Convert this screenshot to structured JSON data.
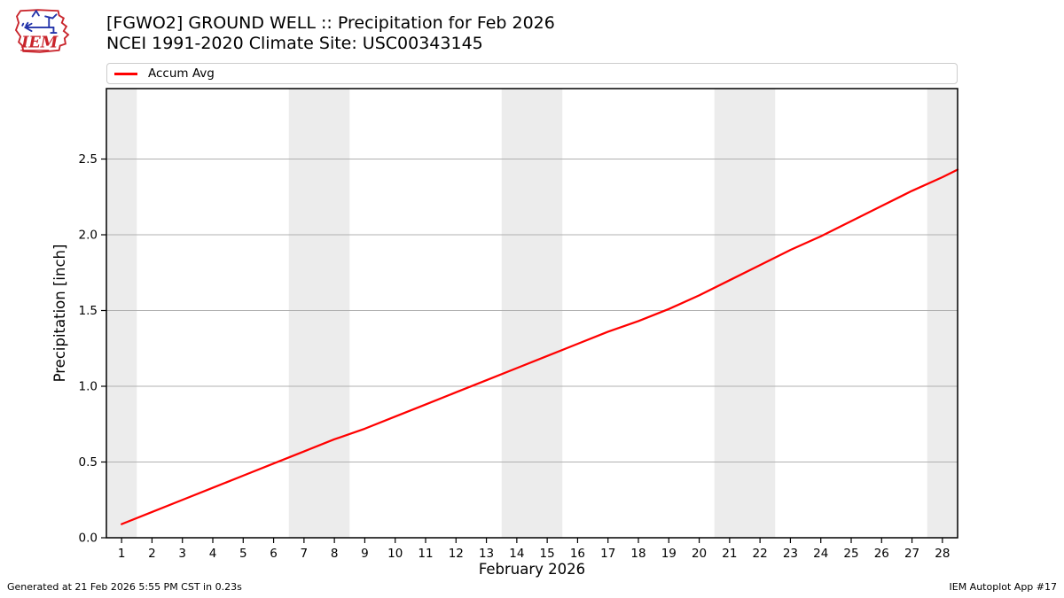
{
  "header": {
    "title": "[FGWO2] GROUND WELL :: Precipitation for Feb 2026",
    "subtitle": "NCEI 1991-2020 Climate Site: USC00343145",
    "logo": {
      "text": "IEM",
      "icon": "iowa-state-outline-weather-station-icon",
      "outline_color": "#c9252c",
      "icon_color": "#2233aa"
    }
  },
  "legend": {
    "items": [
      {
        "label": "Accum Avg",
        "color": "#ff0000"
      }
    ]
  },
  "chart_data": {
    "type": "line",
    "title": "[FGWO2] GROUND WELL :: Precipitation for Feb 2026",
    "subtitle": "NCEI 1991-2020 Climate Site: USC00343145",
    "xlabel": "February 2026",
    "ylabel": "Precipitation [inch]",
    "xlim": [
      0.5,
      28.5
    ],
    "ylim": [
      0,
      2.965
    ],
    "xticks": [
      1,
      2,
      3,
      4,
      5,
      6,
      7,
      8,
      9,
      10,
      11,
      12,
      13,
      14,
      15,
      16,
      17,
      18,
      19,
      20,
      21,
      22,
      23,
      24,
      25,
      26,
      27,
      28
    ],
    "yticks": [
      0.0,
      0.5,
      1.0,
      1.5,
      2.0,
      2.5
    ],
    "grid": true,
    "grid_color": "#b0b0b0",
    "band_color": "#ececec",
    "weekend_bands": [
      [
        0.5,
        1.5
      ],
      [
        6.5,
        8.5
      ],
      [
        13.5,
        15.5
      ],
      [
        20.5,
        22.5
      ],
      [
        27.5,
        28.5
      ]
    ],
    "legend_position": "top",
    "series": [
      {
        "name": "Accum Avg",
        "color": "#ff0000",
        "x": [
          1,
          2,
          3,
          4,
          5,
          6,
          7,
          8,
          9,
          10,
          11,
          12,
          13,
          14,
          15,
          16,
          17,
          18,
          19,
          20,
          21,
          22,
          23,
          24,
          25,
          26,
          27,
          28
        ],
        "values": [
          0.09,
          0.17,
          0.25,
          0.33,
          0.41,
          0.49,
          0.57,
          0.65,
          0.72,
          0.8,
          0.88,
          0.96,
          1.04,
          1.12,
          1.2,
          1.28,
          1.36,
          1.43,
          1.51,
          1.6,
          1.7,
          1.8,
          1.9,
          1.99,
          2.09,
          2.19,
          2.29,
          2.38
        ],
        "edge_point": {
          "x": 28.5,
          "value": 2.43
        }
      }
    ]
  },
  "footer": {
    "generated": "Generated at 21 Feb 2026 5:55 PM CST in 0.23s",
    "app": "IEM Autoplot App #17"
  }
}
